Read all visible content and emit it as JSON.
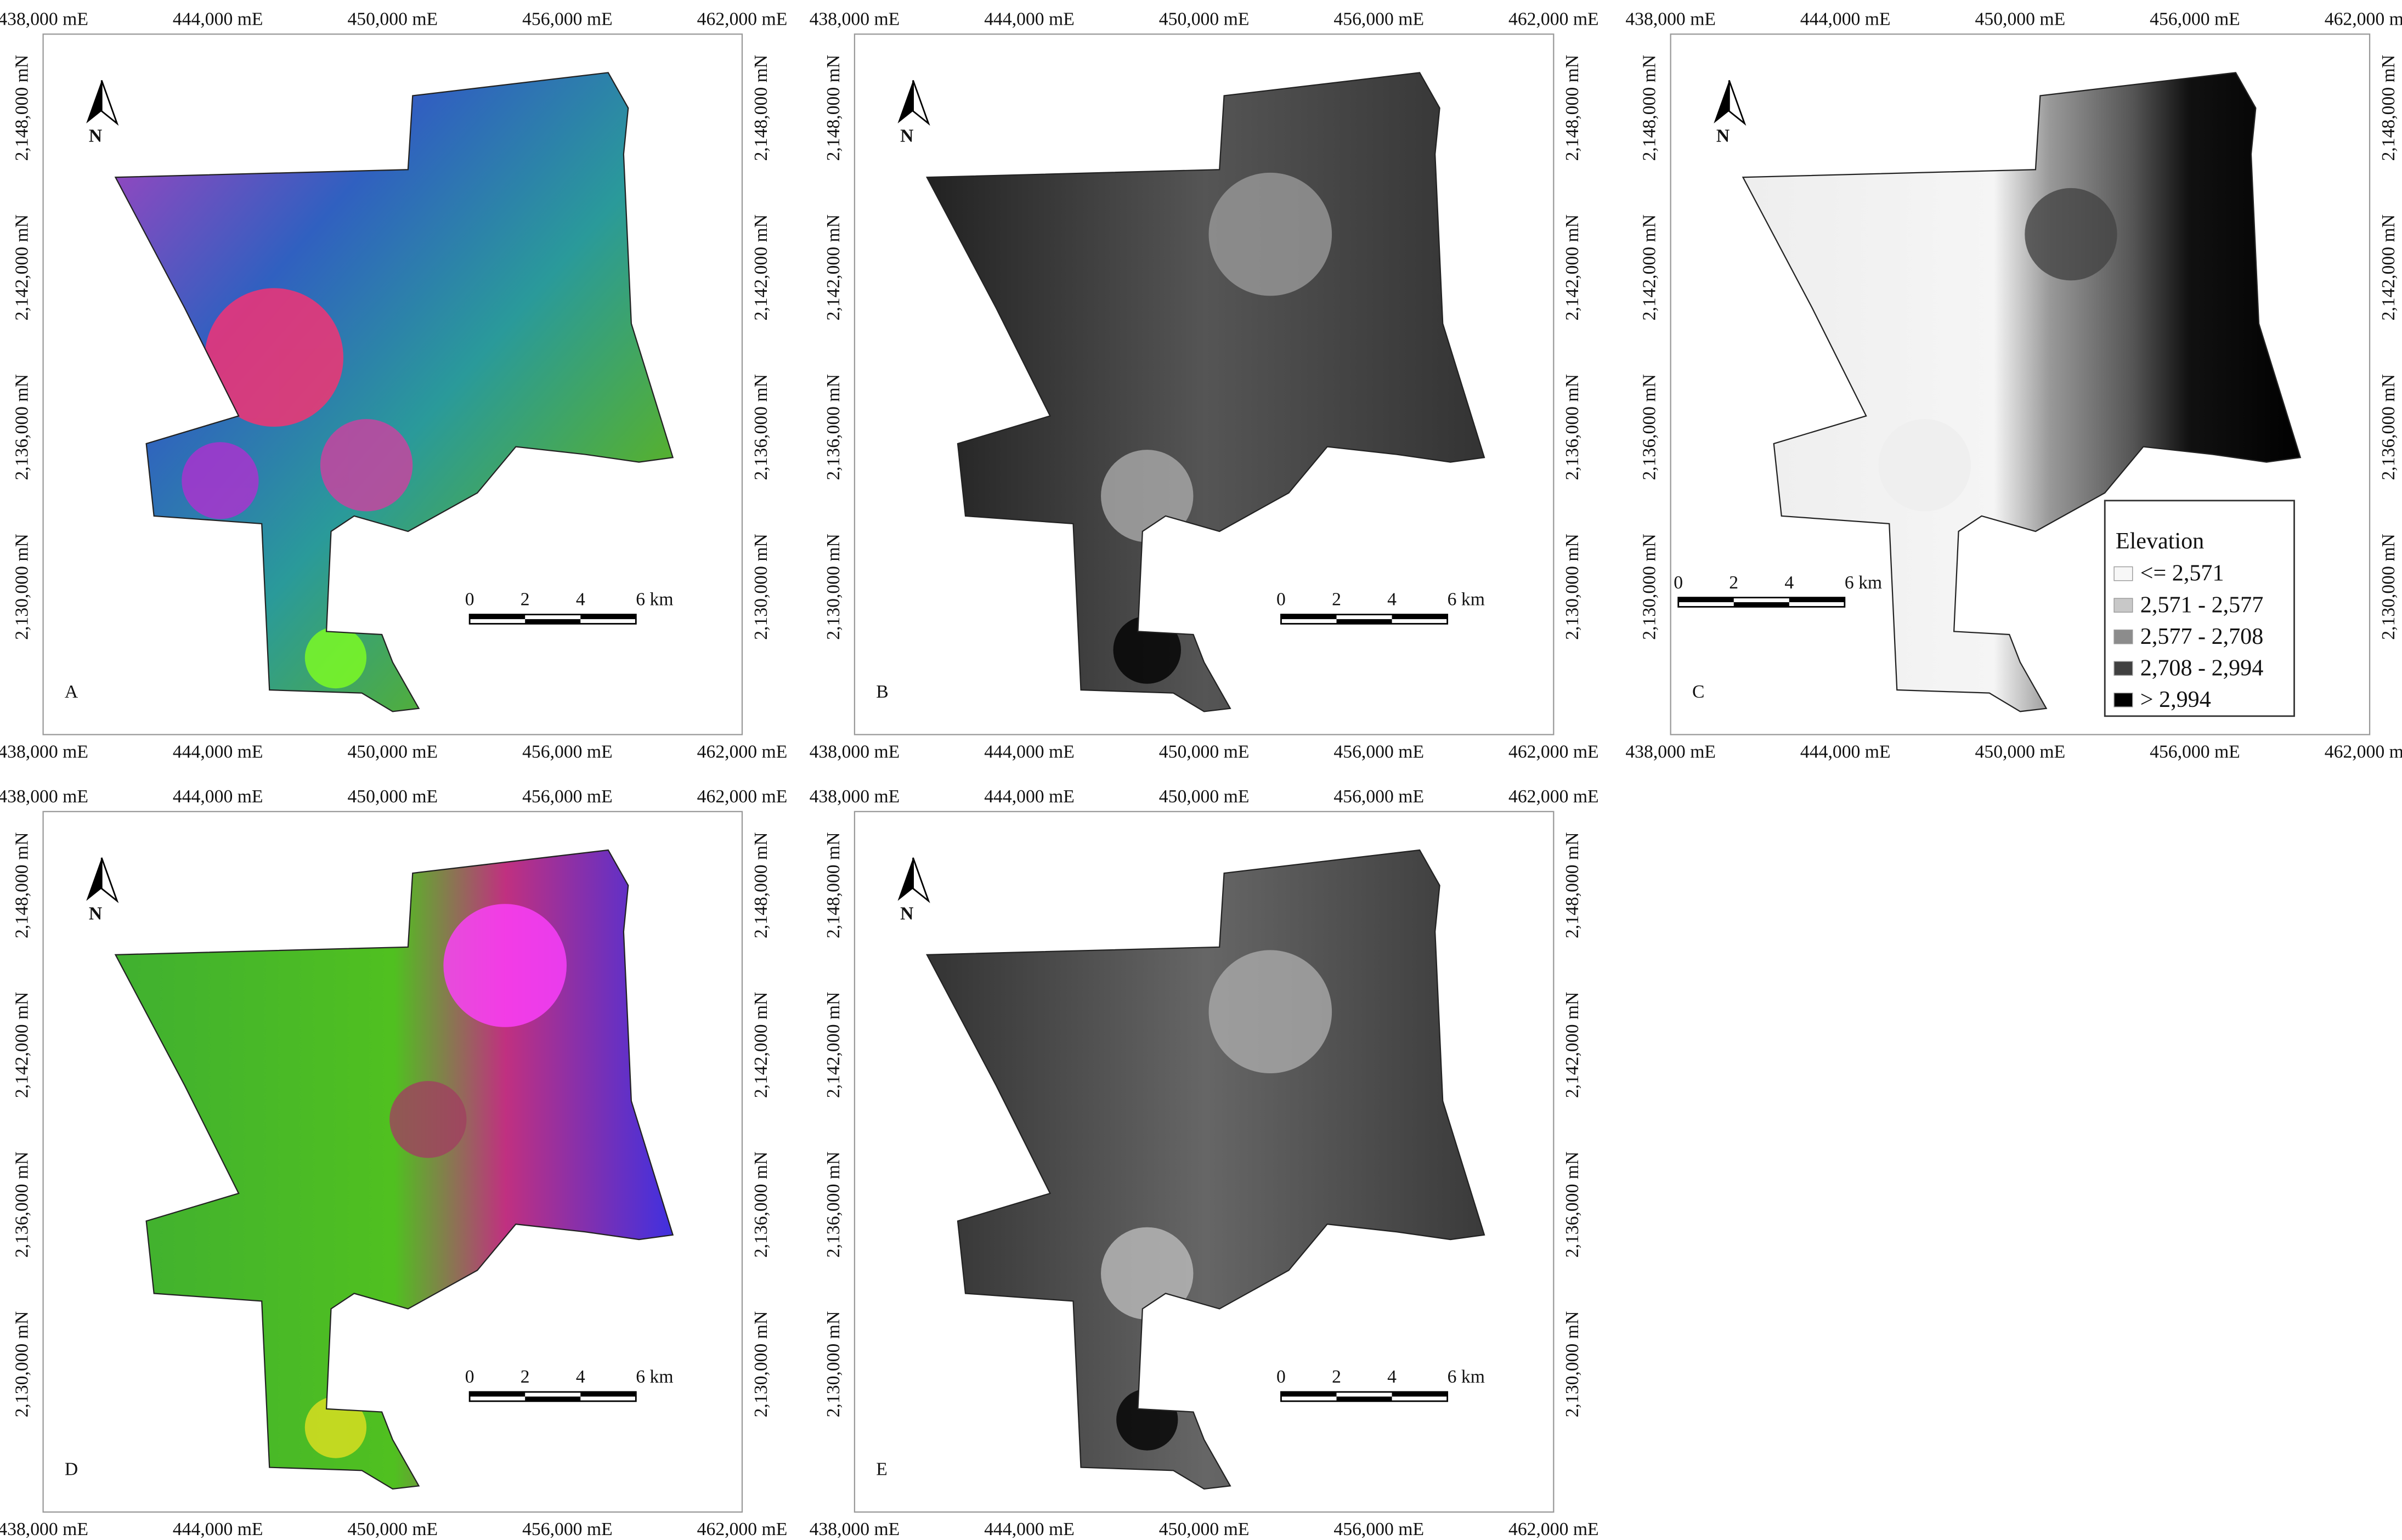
{
  "axes": {
    "x_ticks": [
      "438,000 mE",
      "444,000 mE",
      "450,000 mE",
      "456,000 mE",
      "462,000 mE"
    ],
    "y_ticks": [
      "2,130,000 mN",
      "2,136,000 mN",
      "2,142,000 mN",
      "2,148,000 mN"
    ]
  },
  "north": "N",
  "scale_bar": [
    "0",
    "2",
    "4",
    "6 km"
  ],
  "panels": [
    {
      "label": "A"
    },
    {
      "label": "B"
    },
    {
      "label": "C"
    },
    {
      "label": "D"
    },
    {
      "label": "E"
    }
  ],
  "legend": {
    "title": "Elevation",
    "classes": [
      {
        "label": "<= 2,571",
        "color": "#f7f7f7"
      },
      {
        "label": "2,571 - 2,577",
        "color": "#c8c8c8"
      },
      {
        "label": "2,577 - 2,708",
        "color": "#8c8c8c"
      },
      {
        "label": "2,708 - 2,994",
        "color": "#404040"
      },
      {
        "label": "> 2,994",
        "color": "#000000"
      }
    ]
  }
}
